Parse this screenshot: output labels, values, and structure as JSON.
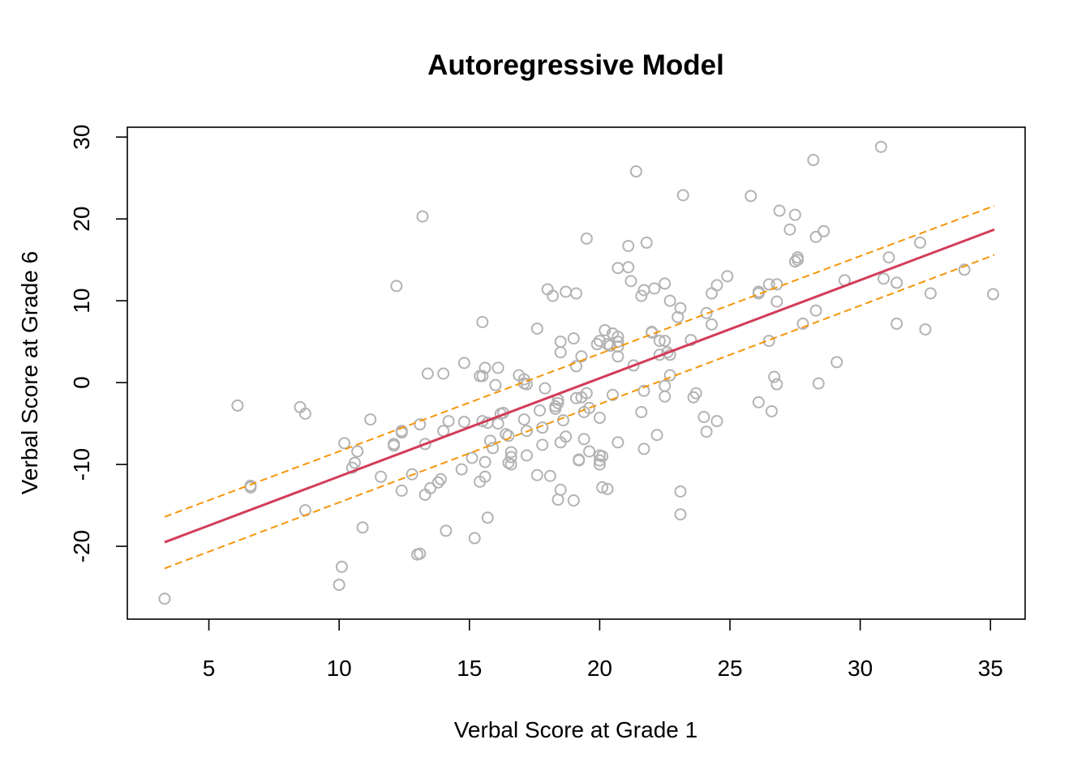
{
  "chart_data": {
    "type": "scatter",
    "title": "Autoregressive Model",
    "xlabel": "Verbal Score at Grade 1",
    "ylabel": "Verbal Score at Grade 6",
    "xlim": [
      1.87,
      36.33
    ],
    "ylim": [
      -28.9,
      31.2
    ],
    "xticks": [
      5,
      10,
      15,
      20,
      25,
      30,
      35
    ],
    "yticks": [
      -20,
      -10,
      0,
      10,
      20,
      30
    ],
    "grid": false,
    "colors": {
      "points": "#b3b3b3",
      "fit": "#d23c5a",
      "ci": "#f5960a"
    },
    "fit_line": {
      "x": [
        3.3,
        35.15
      ],
      "y": [
        -19.5,
        18.7
      ]
    },
    "ci_lower": {
      "x": [
        3.3,
        35.15
      ],
      "y": [
        -22.7,
        15.6
      ]
    },
    "ci_upper": {
      "x": [
        3.3,
        35.15
      ],
      "y": [
        -16.4,
        21.6
      ]
    },
    "points": [
      [
        3.3,
        -26.4
      ],
      [
        6.1,
        -2.8
      ],
      [
        6.6,
        -12.6
      ],
      [
        6.6,
        -12.8
      ],
      [
        8.5,
        -3.0
      ],
      [
        8.7,
        -3.8
      ],
      [
        8.7,
        -15.6
      ],
      [
        10.0,
        -24.7
      ],
      [
        10.1,
        -22.5
      ],
      [
        10.2,
        -7.4
      ],
      [
        10.5,
        -10.4
      ],
      [
        10.6,
        -9.8
      ],
      [
        10.7,
        -8.4
      ],
      [
        10.9,
        -17.7
      ],
      [
        11.2,
        -4.5
      ],
      [
        11.6,
        -11.5
      ],
      [
        12.1,
        -7.5
      ],
      [
        12.1,
        -7.7
      ],
      [
        12.2,
        11.8
      ],
      [
        12.4,
        -13.2
      ],
      [
        12.4,
        -6.1
      ],
      [
        12.4,
        -5.9
      ],
      [
        12.8,
        -11.2
      ],
      [
        13.0,
        -21.0
      ],
      [
        13.1,
        -20.9
      ],
      [
        13.1,
        -5.1
      ],
      [
        13.2,
        20.3
      ],
      [
        13.3,
        -7.5
      ],
      [
        13.3,
        -13.7
      ],
      [
        13.4,
        1.1
      ],
      [
        13.5,
        -12.9
      ],
      [
        13.8,
        -12.2
      ],
      [
        13.9,
        -11.8
      ],
      [
        14.0,
        -5.9
      ],
      [
        14.0,
        1.1
      ],
      [
        14.1,
        -18.1
      ],
      [
        14.2,
        -4.7
      ],
      [
        14.7,
        -10.6
      ],
      [
        14.8,
        -4.8
      ],
      [
        14.8,
        2.4
      ],
      [
        15.1,
        -9.2
      ],
      [
        15.2,
        -19.0
      ],
      [
        15.4,
        -12.1
      ],
      [
        15.4,
        0.8
      ],
      [
        15.5,
        7.4
      ],
      [
        15.5,
        0.8
      ],
      [
        15.5,
        -4.7
      ],
      [
        15.6,
        1.8
      ],
      [
        15.6,
        -9.7
      ],
      [
        15.6,
        -11.5
      ],
      [
        15.7,
        -16.5
      ],
      [
        15.7,
        -4.9
      ],
      [
        15.8,
        -7.1
      ],
      [
        15.9,
        -8.0
      ],
      [
        16.0,
        -0.3
      ],
      [
        16.1,
        1.8
      ],
      [
        16.1,
        -5.0
      ],
      [
        16.2,
        -3.8
      ],
      [
        16.3,
        -3.7
      ],
      [
        16.4,
        -6.3
      ],
      [
        16.5,
        -6.5
      ],
      [
        16.5,
        -9.8
      ],
      [
        16.6,
        -8.5
      ],
      [
        16.6,
        -9.1
      ],
      [
        16.6,
        -10.0
      ],
      [
        16.9,
        0.9
      ],
      [
        17.1,
        0.4
      ],
      [
        17.1,
        -0.1
      ],
      [
        17.1,
        -4.5
      ],
      [
        17.2,
        -0.2
      ],
      [
        17.2,
        -5.9
      ],
      [
        17.2,
        -8.9
      ],
      [
        17.6,
        6.6
      ],
      [
        17.6,
        -11.3
      ],
      [
        17.7,
        -3.4
      ],
      [
        17.8,
        -5.5
      ],
      [
        17.8,
        -7.6
      ],
      [
        17.9,
        -0.7
      ],
      [
        18.0,
        11.4
      ],
      [
        18.1,
        -11.4
      ],
      [
        18.2,
        10.6
      ],
      [
        18.3,
        -2.9
      ],
      [
        18.3,
        -3.2
      ],
      [
        18.4,
        -14.3
      ],
      [
        18.4,
        -2.5
      ],
      [
        18.4,
        -2.1
      ],
      [
        18.5,
        5.0
      ],
      [
        18.5,
        3.7
      ],
      [
        18.5,
        -13.1
      ],
      [
        18.5,
        -7.3
      ],
      [
        18.6,
        -4.6
      ],
      [
        18.7,
        -6.6
      ],
      [
        18.7,
        11.1
      ],
      [
        19.0,
        -14.4
      ],
      [
        19.0,
        5.4
      ],
      [
        19.1,
        -1.9
      ],
      [
        19.1,
        2.0
      ],
      [
        19.1,
        10.9
      ],
      [
        19.2,
        -9.5
      ],
      [
        19.2,
        -9.4
      ],
      [
        19.3,
        3.2
      ],
      [
        19.3,
        -1.8
      ],
      [
        19.4,
        -3.6
      ],
      [
        19.4,
        -6.9
      ],
      [
        19.5,
        17.6
      ],
      [
        19.5,
        -1.3
      ],
      [
        19.6,
        -3.1
      ],
      [
        19.6,
        -8.4
      ],
      [
        19.9,
        4.7
      ],
      [
        20.0,
        5.1
      ],
      [
        20.0,
        -8.9
      ],
      [
        20.0,
        -4.3
      ],
      [
        20.0,
        -9.5
      ],
      [
        20.0,
        -10.0
      ],
      [
        20.1,
        -12.8
      ],
      [
        20.1,
        -9.0
      ],
      [
        20.2,
        6.4
      ],
      [
        20.3,
        -13.0
      ],
      [
        20.3,
        4.7
      ],
      [
        20.4,
        4.5
      ],
      [
        20.5,
        6.0
      ],
      [
        20.5,
        -1.5
      ],
      [
        20.7,
        14.0
      ],
      [
        20.7,
        5.6
      ],
      [
        20.7,
        5.0
      ],
      [
        20.7,
        4.4
      ],
      [
        20.7,
        3.2
      ],
      [
        20.7,
        -7.3
      ],
      [
        21.1,
        16.7
      ],
      [
        21.1,
        14.1
      ],
      [
        21.2,
        12.4
      ],
      [
        21.3,
        2.1
      ],
      [
        21.4,
        25.8
      ],
      [
        21.6,
        10.6
      ],
      [
        21.6,
        -3.6
      ],
      [
        21.7,
        11.3
      ],
      [
        21.7,
        -1.0
      ],
      [
        21.7,
        -8.1
      ],
      [
        21.8,
        17.1
      ],
      [
        22.0,
        6.2
      ],
      [
        22.0,
        6.1
      ],
      [
        22.1,
        11.5
      ],
      [
        22.2,
        -6.4
      ],
      [
        22.3,
        5.1
      ],
      [
        22.3,
        3.4
      ],
      [
        22.5,
        12.1
      ],
      [
        22.5,
        5.1
      ],
      [
        22.5,
        -0.4
      ],
      [
        22.5,
        -1.7
      ],
      [
        22.6,
        3.7
      ],
      [
        22.7,
        10.0
      ],
      [
        22.7,
        3.4
      ],
      [
        22.7,
        0.9
      ],
      [
        23.0,
        8.0
      ],
      [
        23.1,
        -13.3
      ],
      [
        23.1,
        -16.1
      ],
      [
        23.1,
        9.1
      ],
      [
        23.2,
        22.9
      ],
      [
        23.5,
        5.2
      ],
      [
        23.6,
        -1.8
      ],
      [
        23.7,
        -1.3
      ],
      [
        24.0,
        -4.2
      ],
      [
        24.1,
        -6.0
      ],
      [
        24.1,
        8.5
      ],
      [
        24.3,
        10.9
      ],
      [
        24.3,
        7.1
      ],
      [
        24.5,
        11.9
      ],
      [
        24.5,
        -4.7
      ],
      [
        24.9,
        13.0
      ],
      [
        25.8,
        22.8
      ],
      [
        26.1,
        11.1
      ],
      [
        26.1,
        10.9
      ],
      [
        26.1,
        -2.4
      ],
      [
        26.5,
        12.0
      ],
      [
        26.5,
        5.1
      ],
      [
        26.6,
        -3.5
      ],
      [
        26.7,
        0.7
      ],
      [
        26.8,
        12.0
      ],
      [
        26.8,
        9.9
      ],
      [
        26.8,
        -0.2
      ],
      [
        26.9,
        21.0
      ],
      [
        27.3,
        18.7
      ],
      [
        27.5,
        14.8
      ],
      [
        27.5,
        20.5
      ],
      [
        27.6,
        15.3
      ],
      [
        27.6,
        15.0
      ],
      [
        27.8,
        7.2
      ],
      [
        28.2,
        27.2
      ],
      [
        28.3,
        17.8
      ],
      [
        28.3,
        8.8
      ],
      [
        28.4,
        -0.1
      ],
      [
        28.6,
        18.5
      ],
      [
        29.1,
        2.5
      ],
      [
        29.4,
        12.5
      ],
      [
        30.8,
        28.8
      ],
      [
        30.9,
        12.7
      ],
      [
        31.1,
        15.3
      ],
      [
        31.4,
        12.2
      ],
      [
        31.4,
        7.2
      ],
      [
        32.3,
        17.1
      ],
      [
        32.5,
        6.5
      ],
      [
        32.7,
        10.9
      ],
      [
        34.0,
        13.8
      ],
      [
        35.1,
        10.8
      ]
    ]
  }
}
